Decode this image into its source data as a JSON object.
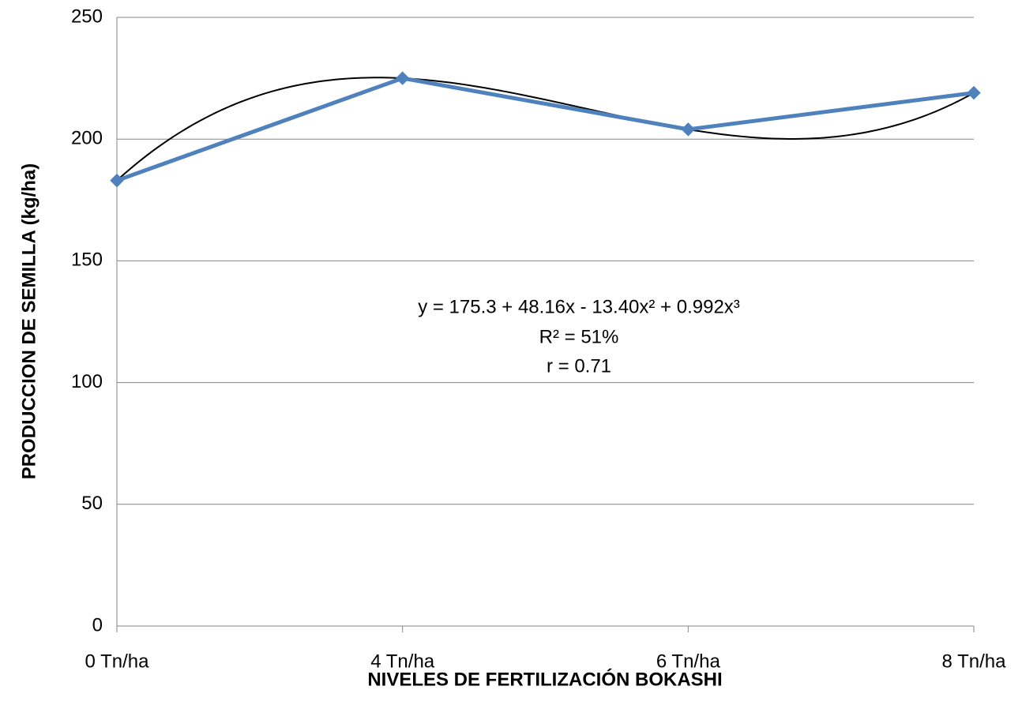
{
  "chart_data": {
    "type": "line",
    "categories": [
      "0 Tn/ha",
      "4 Tn/ha",
      "6 Tn/ha",
      "8 Tn/ha"
    ],
    "series": [
      {
        "name": "PRODUCCION DE SEMILLA",
        "color": "#4f81bd",
        "values": [
          183,
          225,
          204,
          219
        ]
      }
    ],
    "trendline": {
      "type": "polynomial",
      "order": 3,
      "color": "#000000"
    },
    "annotations": [
      "y = 175.3 + 48.16x - 13.40x² + 0.992x³",
      "R² = 51%",
      "r = 0.71"
    ],
    "xlabel": "NIVELES DE FERTILIZACIÓN BOKASHI",
    "ylabel": "PRODUCCION DE SEMILLA (kg/ha)",
    "ylim": [
      0,
      250
    ],
    "yticks": [
      0,
      50,
      100,
      150,
      200,
      250
    ],
    "grid": true
  }
}
